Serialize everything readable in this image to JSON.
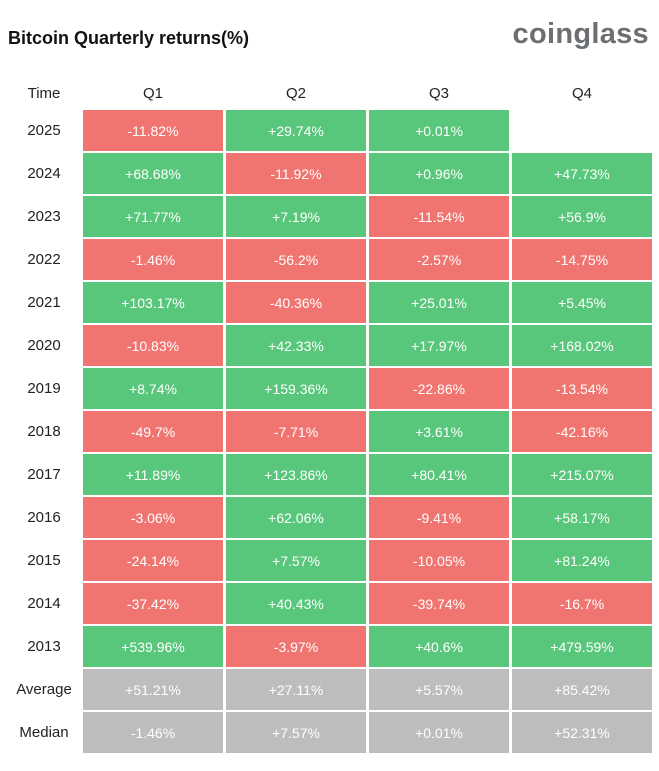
{
  "header": {
    "title": "Bitcoin Quarterly returns(%)",
    "brand": "coinglass"
  },
  "colors": {
    "positive": "#58c77b",
    "negative": "#f07571",
    "stat": "#bdbdbd"
  },
  "chart_data": {
    "type": "table",
    "title": "Bitcoin Quarterly returns(%)",
    "columns": [
      "Time",
      "Q1",
      "Q2",
      "Q3",
      "Q4"
    ],
    "rows": [
      {
        "label": "2025",
        "values": [
          "-11.82%",
          "+29.74%",
          "+0.01%",
          ""
        ]
      },
      {
        "label": "2024",
        "values": [
          "+68.68%",
          "-11.92%",
          "+0.96%",
          "+47.73%"
        ]
      },
      {
        "label": "2023",
        "values": [
          "+71.77%",
          "+7.19%",
          "-11.54%",
          "+56.9%"
        ]
      },
      {
        "label": "2022",
        "values": [
          "-1.46%",
          "-56.2%",
          "-2.57%",
          "-14.75%"
        ]
      },
      {
        "label": "2021",
        "values": [
          "+103.17%",
          "-40.36%",
          "+25.01%",
          "+5.45%"
        ]
      },
      {
        "label": "2020",
        "values": [
          "-10.83%",
          "+42.33%",
          "+17.97%",
          "+168.02%"
        ]
      },
      {
        "label": "2019",
        "values": [
          "+8.74%",
          "+159.36%",
          "-22.86%",
          "-13.54%"
        ]
      },
      {
        "label": "2018",
        "values": [
          "-49.7%",
          "-7.71%",
          "+3.61%",
          "-42.16%"
        ]
      },
      {
        "label": "2017",
        "values": [
          "+11.89%",
          "+123.86%",
          "+80.41%",
          "+215.07%"
        ]
      },
      {
        "label": "2016",
        "values": [
          "-3.06%",
          "+62.06%",
          "-9.41%",
          "+58.17%"
        ]
      },
      {
        "label": "2015",
        "values": [
          "-24.14%",
          "+7.57%",
          "-10.05%",
          "+81.24%"
        ]
      },
      {
        "label": "2014",
        "values": [
          "-37.42%",
          "+40.43%",
          "-39.74%",
          "-16.7%"
        ]
      },
      {
        "label": "2013",
        "values": [
          "+539.96%",
          "-3.97%",
          "+40.6%",
          "+479.59%"
        ]
      }
    ],
    "stats": [
      {
        "label": "Average",
        "values": [
          "+51.21%",
          "+27.11%",
          "+5.57%",
          "+85.42%"
        ]
      },
      {
        "label": "Median",
        "values": [
          "-1.46%",
          "+7.57%",
          "+0.01%",
          "+52.31%"
        ]
      }
    ]
  }
}
